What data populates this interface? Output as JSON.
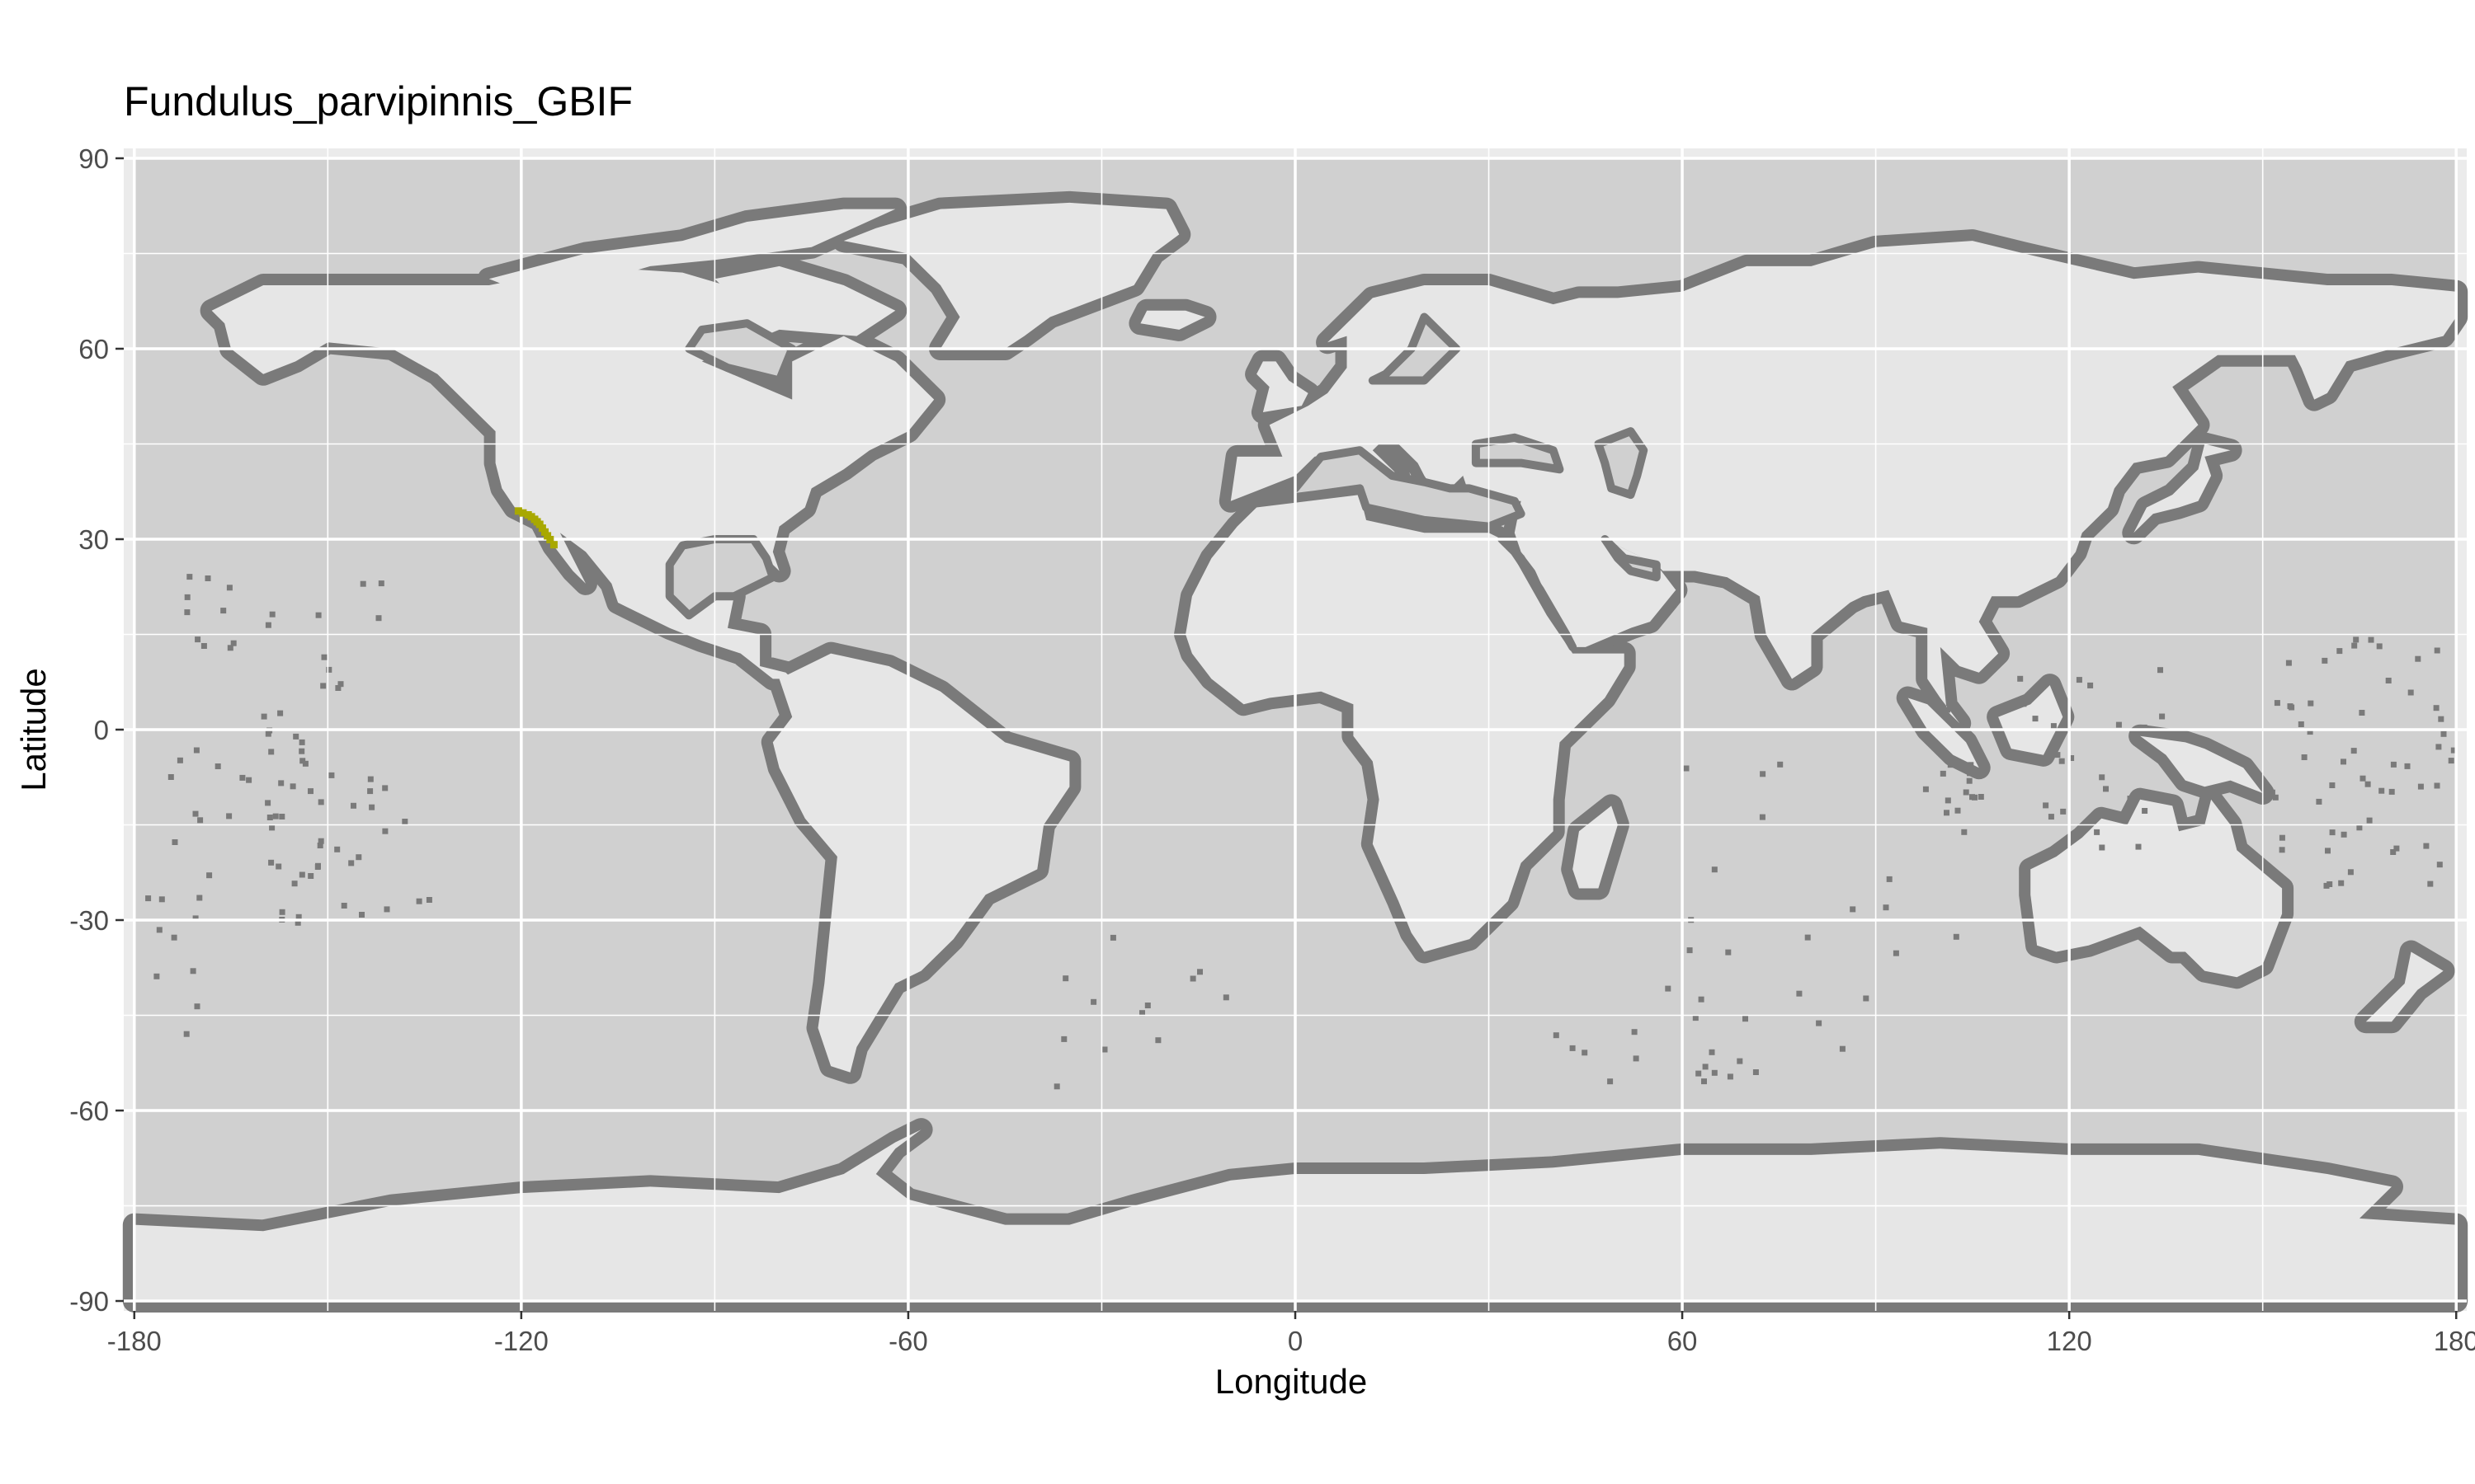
{
  "chart_data": {
    "type": "map",
    "title": "Fundulus_parvipinnis_GBIF",
    "xlabel": "Longitude",
    "ylabel": "Latitude",
    "xlim": [
      -180,
      180
    ],
    "ylim": [
      -90,
      90
    ],
    "x_ticks": [
      -180,
      -120,
      -60,
      0,
      60,
      120,
      180
    ],
    "y_ticks": [
      90,
      60,
      30,
      0,
      -30,
      -60,
      -90
    ],
    "x_tick_labels": [
      "-180",
      "-120",
      "-60",
      "0",
      "60",
      "120",
      "180"
    ],
    "y_tick_labels": [
      "90",
      "60",
      "30",
      "0",
      "-30",
      "-60",
      "-90"
    ],
    "grid": true,
    "colors": {
      "panel_background": "#ebebeb",
      "ocean": "#d0d0d0",
      "land": "#e6e6e6",
      "shelf": "#7a7a7a",
      "occurrence": "#a8a800",
      "grid": "#ffffff"
    },
    "occurrence_points": [
      {
        "lon": -120.5,
        "lat": 34.5
      },
      {
        "lon": -119.8,
        "lat": 34.2
      },
      {
        "lon": -119.0,
        "lat": 33.9
      },
      {
        "lon": -118.5,
        "lat": 33.6
      },
      {
        "lon": -118.0,
        "lat": 33.2
      },
      {
        "lon": -117.6,
        "lat": 32.8
      },
      {
        "lon": -117.2,
        "lat": 32.4
      },
      {
        "lon": -116.8,
        "lat": 31.8
      },
      {
        "lon": -116.4,
        "lat": 31.2
      },
      {
        "lon": -116.0,
        "lat": 30.6
      },
      {
        "lon": -115.6,
        "lat": 30.0
      },
      {
        "lon": -115.0,
        "lat": 29.2
      }
    ]
  }
}
